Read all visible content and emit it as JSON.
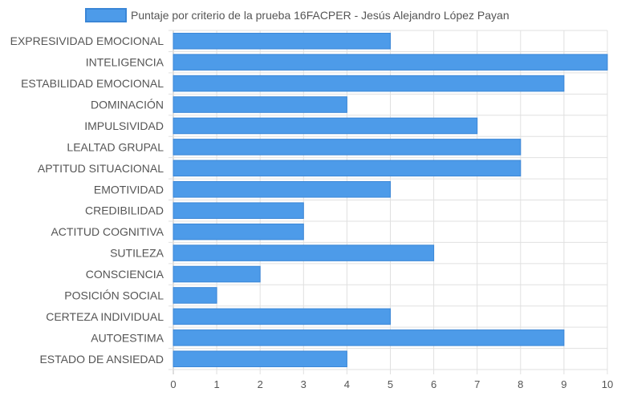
{
  "chart_data": {
    "type": "bar",
    "orientation": "horizontal",
    "legend": {
      "label": "Puntaje por criterio de la prueba 16FACPER - Jesús Alejandro López Payan",
      "placement": "top-center"
    },
    "categories": [
      "EXPRESIVIDAD EMOCIONAL",
      "INTELIGENCIA",
      "ESTABILIDAD EMOCIONAL",
      "DOMINACIÓN",
      "IMPULSIVIDAD",
      "LEALTAD GRUPAL",
      "APTITUD SITUACIONAL",
      "EMOTIVIDAD",
      "CREDIBILIDAD",
      "ACTITUD COGNITIVA",
      "SUTILEZA",
      "CONSCIENCIA",
      "POSICIÓN SOCIAL",
      "CERTEZA INDIVIDUAL",
      "AUTOESTIMA",
      "ESTADO DE ANSIEDAD"
    ],
    "series": [
      {
        "name": "Puntaje por criterio de la prueba 16FACPER - Jesús Alejandro López Payan",
        "values": [
          5,
          10,
          9,
          4,
          7,
          8,
          8,
          5,
          3,
          3,
          6,
          2,
          1,
          5,
          9,
          4
        ]
      }
    ],
    "xlim": [
      0,
      10
    ],
    "xticks": [
      "0",
      "1",
      "2",
      "3",
      "4",
      "5",
      "6",
      "7",
      "8",
      "9",
      "10"
    ],
    "grid": true,
    "colors": {
      "bar_fill": "#4d9be9",
      "bar_stroke": "#3a86d6",
      "grid": "#e0e0e0",
      "axis": "#bdbdbd",
      "text": "#555555"
    }
  }
}
